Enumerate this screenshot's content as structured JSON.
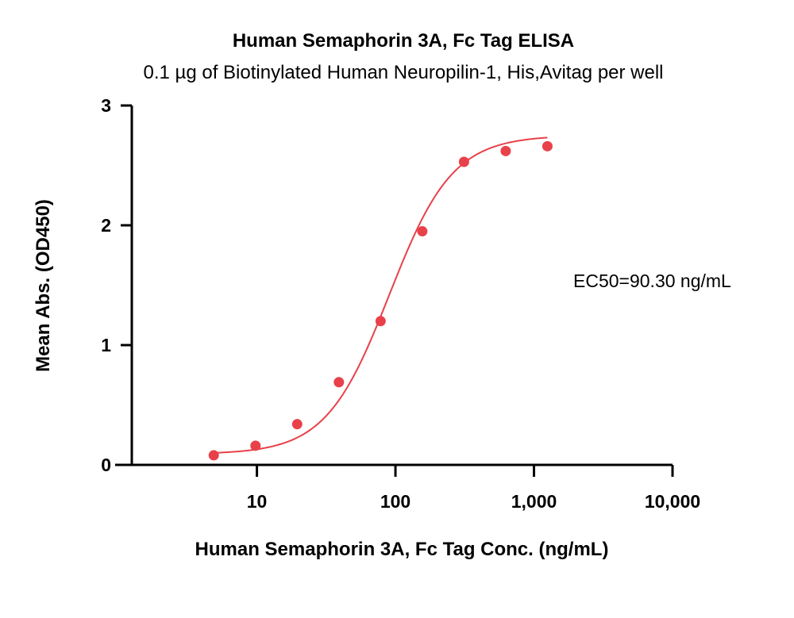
{
  "chart_data": {
    "type": "scatter",
    "title": "Human Semaphorin 3A, Fc Tag ELISA",
    "subtitle": "0.1 µg of Biotinylated Human Neuropilin-1, His,Avitag per well",
    "xlabel": "Human Semaphorin 3A, Fc Tag Conc. (ng/mL)",
    "ylabel": "Mean Abs. (OD450)",
    "x_scale": "log",
    "xlim": [
      1.25,
      10000
    ],
    "ylim": [
      0,
      3
    ],
    "x_ticks": [
      10,
      100,
      1000,
      10000
    ],
    "x_tick_labels": [
      "10",
      "100",
      "1,000",
      "10,000"
    ],
    "y_ticks": [
      0,
      1,
      2,
      3
    ],
    "y_tick_labels": [
      "0",
      "1",
      "2",
      "3"
    ],
    "grid": false,
    "series": [
      {
        "color": "#e8414a",
        "x": [
          4.88,
          9.77,
          19.53,
          39.06,
          78.13,
          156.25,
          312.5,
          625,
          1250
        ],
        "y": [
          0.08,
          0.16,
          0.34,
          0.69,
          1.2,
          1.95,
          2.53,
          2.62,
          2.66
        ]
      }
    ],
    "fit": {
      "model": "4PL",
      "color": "#e8414a",
      "bottom": 0.09,
      "top": 2.75,
      "ec50": 90.3,
      "hill": 1.9,
      "x_range": [
        4.88,
        1250
      ]
    },
    "annotation": "EC50=90.30 ng/mL"
  }
}
